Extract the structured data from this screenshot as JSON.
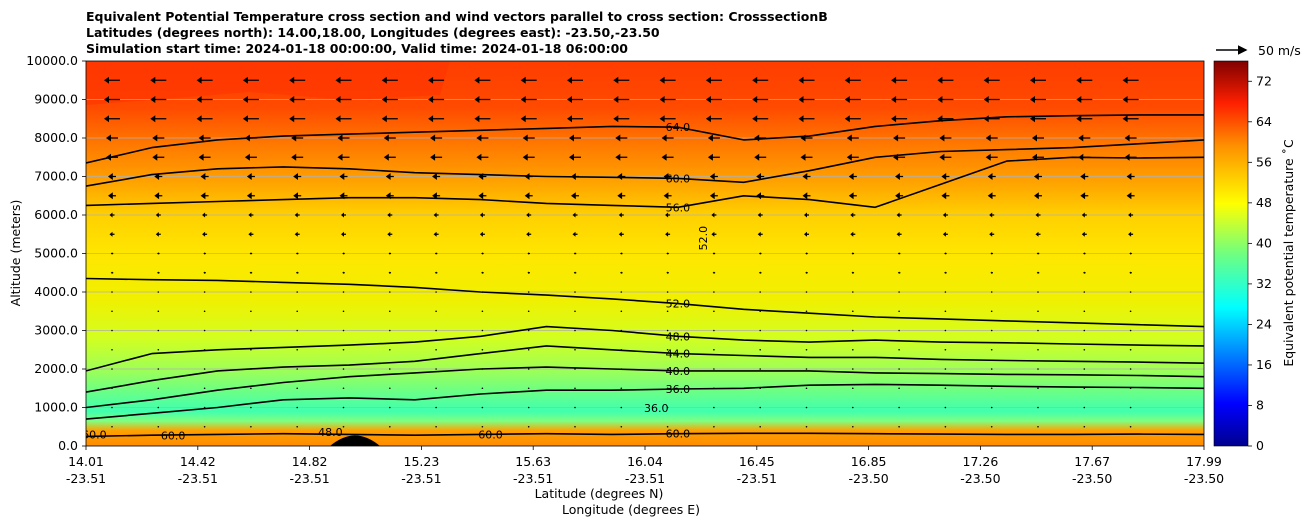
{
  "chart_data": {
    "type": "contour",
    "title_lines": [
      "Equivalent Potential Temperature cross section and wind vectors parallel to cross section: CrosssectionB",
      "Latitudes (degrees north): 14.00,18.00, Longitudes (degrees east): -23.50,-23.50",
      "Simulation start time: 2024-01-18 00:00:00, Valid time: 2024-01-18 06:00:00"
    ],
    "ylabel": "Altitude (meters)",
    "xlabel_lat": "Latitude (degrees N)",
    "xlabel_lon": "Longitude (degrees E)",
    "ylim": [
      0,
      10000
    ],
    "y_ticks": [
      0,
      1000,
      2000,
      3000,
      4000,
      5000,
      6000,
      7000,
      8000,
      9000,
      10000
    ],
    "y_tick_labels": [
      "0.0",
      "1000.0",
      "2000.0",
      "3000.0",
      "4000.0",
      "5000.0",
      "6000.0",
      "7000.0",
      "8000.0",
      "9000.0",
      "10000.0"
    ],
    "x_tick_lat": [
      "14.01",
      "14.42",
      "14.82",
      "15.23",
      "15.63",
      "16.04",
      "16.45",
      "16.85",
      "17.26",
      "17.67",
      "17.99"
    ],
    "x_tick_lon": [
      "-23.51",
      "-23.51",
      "-23.51",
      "-23.51",
      "-23.51",
      "-23.51",
      "-23.51",
      "-23.50",
      "-23.50",
      "-23.50",
      "-23.50"
    ],
    "colorbar": {
      "label": "Equivalent potential temperature ˚C",
      "min": 0,
      "max": 76,
      "ticks": [
        "0",
        "8",
        "16",
        "24",
        "32",
        "40",
        "48",
        "56",
        "64",
        "72"
      ]
    },
    "quiver_key": "50 m/s",
    "contour_levels": [
      {
        "level": 64,
        "label": "64.0",
        "alt": [
          7350,
          7750,
          7950,
          8050,
          8100,
          8150,
          8200,
          8250,
          8300,
          8280,
          7950,
          8050,
          8300,
          8450,
          8550,
          8580,
          8600,
          8600
        ]
      },
      {
        "level": 60,
        "label": "60.0",
        "alt": [
          6750,
          7050,
          7200,
          7250,
          7200,
          7100,
          7050,
          7000,
          6980,
          6950,
          6850,
          7150,
          7500,
          7650,
          7700,
          7750,
          7850,
          7950
        ]
      },
      {
        "level": 56,
        "label": "56.0",
        "alt": [
          6250,
          6300,
          6350,
          6400,
          6450,
          6450,
          6400,
          6300,
          6250,
          6200,
          6500,
          6400,
          6200,
          6800,
          7400,
          7500,
          7480,
          7500
        ]
      },
      {
        "level": 52,
        "label": "52.0",
        "alt": [
          4350,
          4320,
          4300,
          4250,
          4200,
          4120,
          4000,
          3920,
          3820,
          3700,
          3550,
          3450,
          3350,
          3300,
          3250,
          3200,
          3150,
          3100
        ]
      },
      {
        "level": 48,
        "label": "48.0",
        "alt": [
          1950,
          2400,
          2500,
          2560,
          2620,
          2700,
          2850,
          3100,
          3000,
          2850,
          2750,
          2700,
          2750,
          2700,
          2680,
          2650,
          2620,
          2600
        ]
      },
      {
        "level": 44,
        "label": "44.0",
        "alt": [
          1400,
          1700,
          1950,
          2050,
          2100,
          2200,
          2400,
          2600,
          2500,
          2400,
          2350,
          2300,
          2300,
          2250,
          2220,
          2200,
          2180,
          2150
        ]
      },
      {
        "level": 40,
        "label": "40.0",
        "alt": [
          1000,
          1200,
          1450,
          1650,
          1800,
          1900,
          2000,
          2050,
          2000,
          1950,
          1950,
          1950,
          1900,
          1880,
          1860,
          1850,
          1830,
          1800
        ]
      },
      {
        "level": 36,
        "label": "36.0",
        "alt": [
          700,
          850,
          1000,
          1200,
          1250,
          1200,
          1350,
          1450,
          1450,
          1480,
          1500,
          1580,
          1600,
          1580,
          1550,
          1530,
          1520,
          1500
        ]
      },
      {
        "level": 60,
        "label": "60.0",
        "alt": [
          250,
          280,
          300,
          320,
          300,
          280,
          300,
          320,
          300,
          320,
          330,
          330,
          320,
          310,
          300,
          300,
          310,
          300
        ]
      }
    ],
    "extra_labels": [
      {
        "text": "52.0",
        "lat": 16.22,
        "alt": 5400,
        "rotate": -90
      },
      {
        "text": "36.0",
        "lat": 16.04,
        "alt": 880
      },
      {
        "text": "48.0",
        "lat": 14.88,
        "alt": 260
      },
      {
        "text": "60.0",
        "lat": 14.32,
        "alt": 170
      },
      {
        "text": "60.0",
        "lat": 14.04,
        "alt": 200
      },
      {
        "text": "60.0",
        "lat": 15.45,
        "alt": 200
      }
    ]
  }
}
